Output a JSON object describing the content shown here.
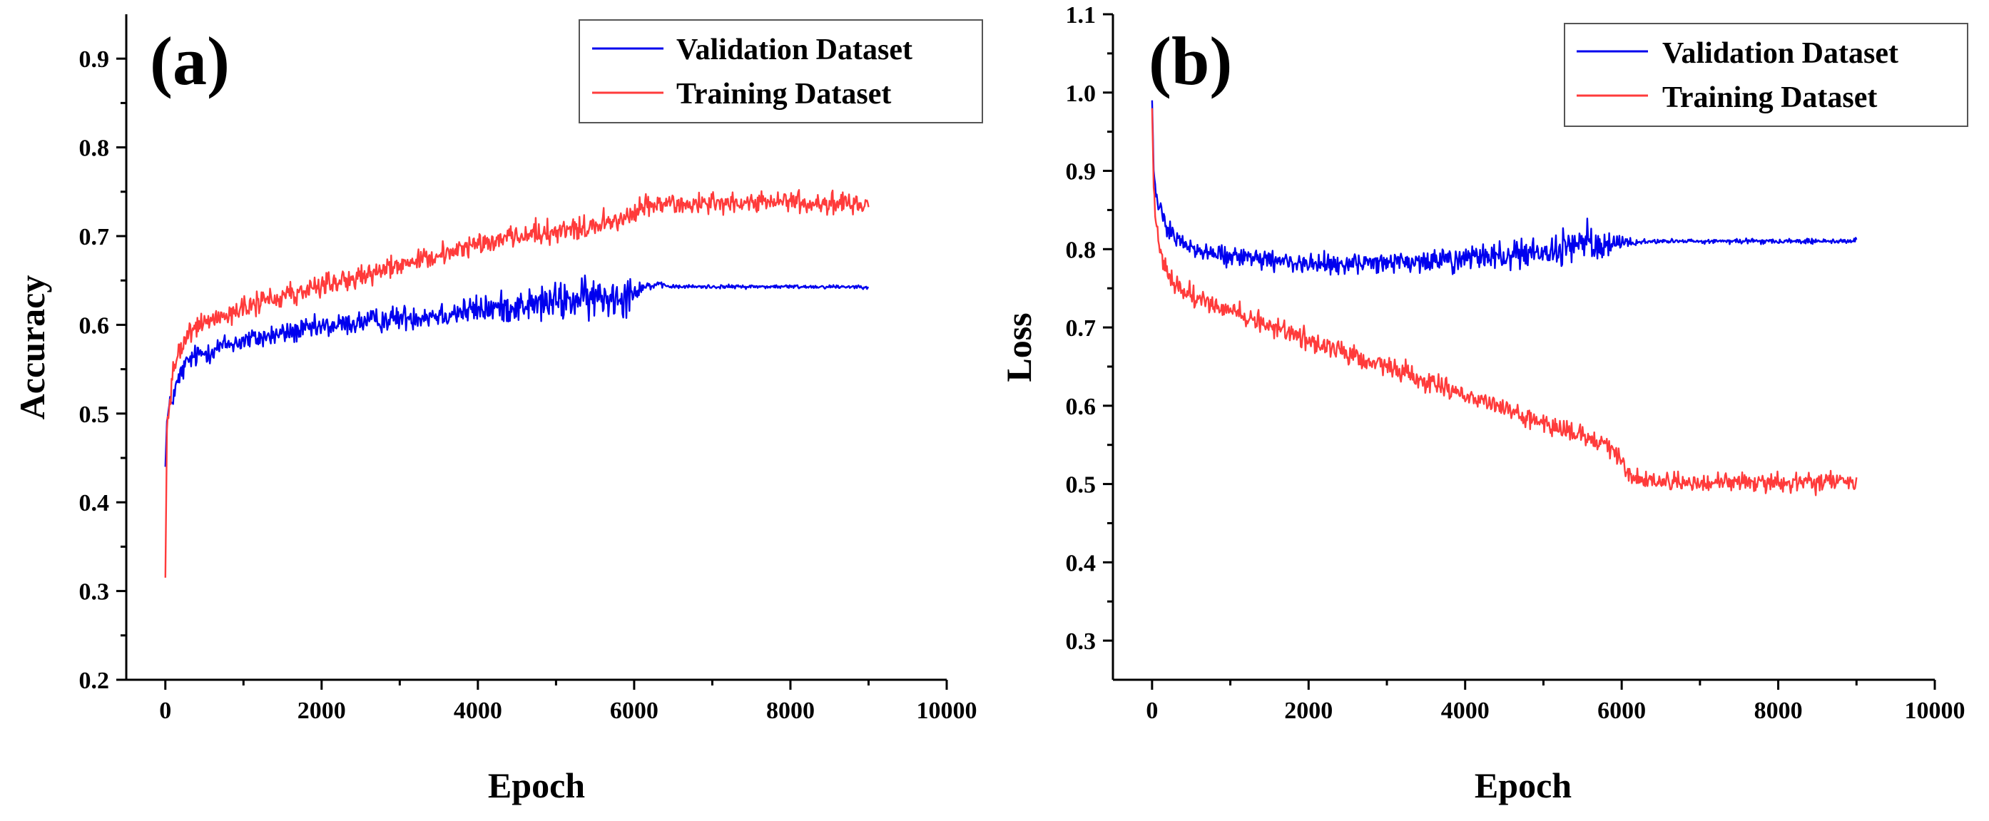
{
  "chart_data": [
    {
      "type": "line",
      "panel_label": "(a)",
      "title": "",
      "xlabel": "Epoch",
      "ylabel": "Accuracy",
      "xlim": [
        -500,
        10000
      ],
      "ylim": [
        0.2,
        0.95
      ],
      "xticks": [
        0,
        2000,
        4000,
        6000,
        8000,
        10000
      ],
      "xtick_labels": [
        "0",
        "2000",
        "4000",
        "6000",
        "8000",
        "10000"
      ],
      "yticks": [
        0.2,
        0.3,
        0.4,
        0.5,
        0.6,
        0.7,
        0.8,
        0.9
      ],
      "ytick_labels": [
        "0.2",
        "0.3",
        "0.4",
        "0.5",
        "0.6",
        "0.7",
        "0.8",
        "0.9"
      ],
      "legend_position": "top-right",
      "series": [
        {
          "name": "Validation Dataset",
          "color": "#0000ee",
          "x": [
            0,
            20,
            50,
            100,
            200,
            300,
            400,
            600,
            800,
            1000,
            1500,
            2000,
            2500,
            3000,
            3500,
            4000,
            4500,
            5000,
            5500,
            5900,
            6100,
            6300,
            6500,
            7000,
            7500,
            8000,
            8500,
            9000
          ],
          "y": [
            0.44,
            0.49,
            0.505,
            0.52,
            0.545,
            0.56,
            0.565,
            0.572,
            0.578,
            0.582,
            0.59,
            0.597,
            0.603,
            0.608,
            0.612,
            0.617,
            0.621,
            0.626,
            0.63,
            0.635,
            0.643,
            0.645,
            0.643,
            0.643,
            0.643,
            0.643,
            0.643,
            0.643
          ],
          "noise": [
            0,
            0.01,
            0.012,
            0.012,
            0.012,
            0.012,
            0.012,
            0.012,
            0.012,
            0.012,
            0.012,
            0.012,
            0.012,
            0.013,
            0.014,
            0.015,
            0.016,
            0.02,
            0.022,
            0.022,
            0.006,
            0.003,
            0.002,
            0.002,
            0.002,
            0.002,
            0.002,
            0.002
          ]
        },
        {
          "name": "Training Dataset",
          "color": "#ff3b3b",
          "x": [
            0,
            20,
            50,
            100,
            200,
            300,
            400,
            600,
            800,
            1000,
            1500,
            2000,
            2500,
            3000,
            3500,
            4000,
            4500,
            5000,
            5500,
            5900,
            6100,
            6300,
            6500,
            7000,
            7500,
            8000,
            8500,
            9000
          ],
          "y": [
            0.315,
            0.48,
            0.52,
            0.55,
            0.575,
            0.59,
            0.598,
            0.607,
            0.613,
            0.618,
            0.632,
            0.644,
            0.656,
            0.668,
            0.68,
            0.691,
            0.7,
            0.706,
            0.712,
            0.72,
            0.733,
            0.737,
            0.737,
            0.737,
            0.737,
            0.737,
            0.737,
            0.737
          ],
          "noise": [
            0,
            0.02,
            0.015,
            0.012,
            0.012,
            0.012,
            0.012,
            0.012,
            0.012,
            0.012,
            0.012,
            0.012,
            0.012,
            0.012,
            0.012,
            0.012,
            0.012,
            0.012,
            0.012,
            0.012,
            0.012,
            0.012,
            0.011,
            0.011,
            0.011,
            0.011,
            0.011,
            0.011
          ]
        }
      ]
    },
    {
      "type": "line",
      "panel_label": "(b)",
      "title": "",
      "xlabel": "Epoch",
      "ylabel": "Loss",
      "xlim": [
        -500,
        10000
      ],
      "ylim": [
        0.25,
        1.1
      ],
      "xticks": [
        0,
        2000,
        4000,
        6000,
        8000,
        10000
      ],
      "xtick_labels": [
        "0",
        "2000",
        "4000",
        "6000",
        "8000",
        "10000"
      ],
      "yticks": [
        0.3,
        0.4,
        0.5,
        0.6,
        0.7,
        0.8,
        0.9,
        1.0,
        1.1
      ],
      "ytick_labels": [
        "0.3",
        "0.4",
        "0.5",
        "0.6",
        "0.7",
        "0.8",
        "0.9",
        "1.0",
        "1.1"
      ],
      "legend_position": "top-right",
      "series": [
        {
          "name": "Validation Dataset",
          "color": "#0000ee",
          "x": [
            0,
            20,
            50,
            100,
            200,
            300,
            500,
            800,
            1000,
            1500,
            2000,
            2500,
            3000,
            3500,
            4000,
            4500,
            5000,
            5400,
            5800,
            6000,
            6200,
            6500,
            7000,
            7500,
            8000,
            8500,
            9000
          ],
          "y": [
            0.99,
            0.9,
            0.87,
            0.85,
            0.83,
            0.815,
            0.8,
            0.793,
            0.79,
            0.785,
            0.782,
            0.78,
            0.782,
            0.785,
            0.787,
            0.79,
            0.795,
            0.805,
            0.81,
            0.81,
            0.808,
            0.81,
            0.81,
            0.81,
            0.81,
            0.81,
            0.81
          ],
          "noise": [
            0,
            0.012,
            0.012,
            0.012,
            0.012,
            0.012,
            0.012,
            0.012,
            0.012,
            0.012,
            0.012,
            0.012,
            0.013,
            0.014,
            0.015,
            0.017,
            0.02,
            0.025,
            0.02,
            0.008,
            0.004,
            0.003,
            0.003,
            0.003,
            0.003,
            0.003,
            0.003
          ]
        },
        {
          "name": "Training Dataset",
          "color": "#ff3b3b",
          "x": [
            0,
            20,
            50,
            100,
            200,
            300,
            500,
            800,
            1000,
            1500,
            2000,
            2500,
            3000,
            3500,
            4000,
            4500,
            5000,
            5500,
            5900,
            6100,
            6300,
            6500,
            7000,
            7500,
            8000,
            8500,
            9000
          ],
          "y": [
            0.98,
            0.88,
            0.84,
            0.8,
            0.77,
            0.755,
            0.74,
            0.73,
            0.722,
            0.703,
            0.685,
            0.667,
            0.65,
            0.632,
            0.614,
            0.596,
            0.578,
            0.56,
            0.545,
            0.512,
            0.505,
            0.503,
            0.502,
            0.502,
            0.502,
            0.502,
            0.502
          ],
          "noise": [
            0,
            0.02,
            0.015,
            0.013,
            0.012,
            0.012,
            0.012,
            0.012,
            0.012,
            0.012,
            0.012,
            0.012,
            0.012,
            0.012,
            0.012,
            0.012,
            0.012,
            0.012,
            0.012,
            0.012,
            0.011,
            0.011,
            0.011,
            0.011,
            0.011,
            0.011,
            0.011
          ]
        }
      ]
    }
  ]
}
